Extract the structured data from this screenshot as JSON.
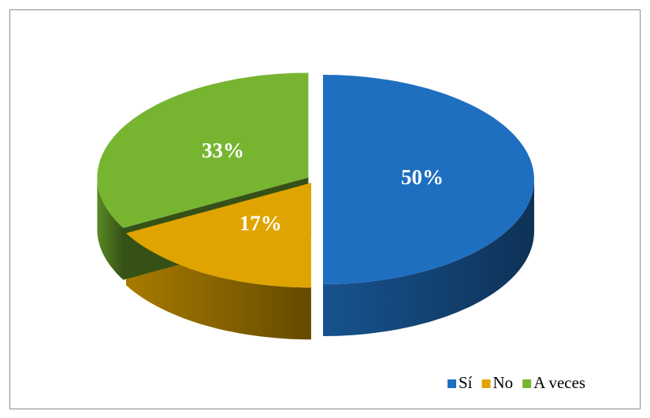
{
  "chart_data": {
    "type": "pie3d",
    "categories": [
      "Sí",
      "No",
      "A veces"
    ],
    "values": [
      50,
      17,
      33
    ],
    "value_labels": [
      "50%",
      "17%",
      "33%"
    ],
    "colors": [
      "#1f6fc0",
      "#e0a400",
      "#77b531"
    ],
    "legend": "bottom-right"
  }
}
